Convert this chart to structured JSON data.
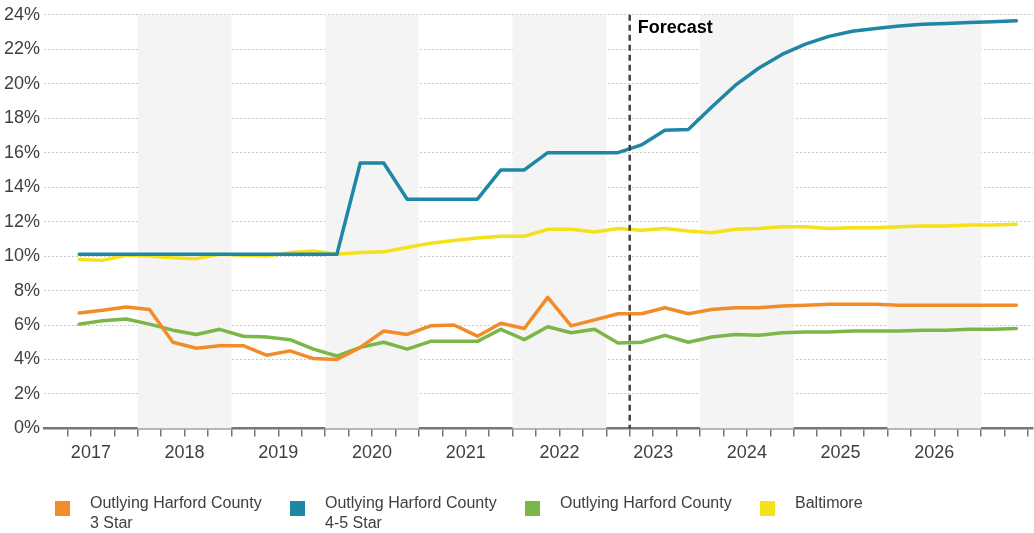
{
  "chart_data": {
    "type": "line",
    "x": [
      2017.375,
      2017.625,
      2017.875,
      2018.125,
      2018.375,
      2018.625,
      2018.875,
      2019.125,
      2019.375,
      2019.625,
      2019.875,
      2020.125,
      2020.375,
      2020.625,
      2020.875,
      2021.125,
      2021.375,
      2021.625,
      2021.875,
      2022.125,
      2022.375,
      2022.625,
      2022.875,
      2023.125,
      2023.375,
      2023.625,
      2023.875,
      2024.125,
      2024.375,
      2024.625,
      2024.875,
      2025.125,
      2025.375,
      2025.625,
      2025.875,
      2026.125,
      2026.375,
      2026.625,
      2026.875,
      2027.125,
      2027.375
    ],
    "series": [
      {
        "name": "Outlying Harford County 3 Star",
        "color": "#f28c28",
        "values": [
          6.7,
          6.85,
          7.05,
          6.9,
          5.0,
          4.65,
          4.8,
          4.8,
          4.25,
          4.5,
          4.05,
          4.0,
          4.7,
          5.65,
          5.45,
          5.95,
          6.0,
          5.35,
          6.1,
          5.8,
          7.6,
          5.95,
          6.3,
          6.65,
          6.65,
          7.0,
          6.65,
          6.9,
          7.0,
          7.0,
          7.1,
          7.15,
          7.2,
          7.2,
          7.2,
          7.15,
          7.15,
          7.15,
          7.15,
          7.15,
          7.15
        ]
      },
      {
        "name": "Outlying Harford County 4-5 Star",
        "color": "#1f86a6",
        "values": [
          10.1,
          10.1,
          10.1,
          10.1,
          10.1,
          10.1,
          10.1,
          10.1,
          10.1,
          10.1,
          10.1,
          10.1,
          15.4,
          15.4,
          13.3,
          13.3,
          13.3,
          13.3,
          15.0,
          15.0,
          16.0,
          16.0,
          16.0,
          16.0,
          16.45,
          17.3,
          17.35,
          18.65,
          19.9,
          20.9,
          21.7,
          22.3,
          22.75,
          23.05,
          23.2,
          23.35,
          23.45,
          23.5,
          23.55,
          23.6,
          23.65
        ]
      },
      {
        "name": "Outlying Harford County",
        "color": "#7ab648",
        "values": [
          6.05,
          6.25,
          6.35,
          6.05,
          5.7,
          5.45,
          5.75,
          5.35,
          5.3,
          5.15,
          4.6,
          4.2,
          4.7,
          5.0,
          4.6,
          5.05,
          5.05,
          5.05,
          5.75,
          5.15,
          5.9,
          5.55,
          5.75,
          4.95,
          5.0,
          5.4,
          5.0,
          5.3,
          5.45,
          5.4,
          5.55,
          5.6,
          5.6,
          5.65,
          5.65,
          5.65,
          5.7,
          5.7,
          5.75,
          5.75,
          5.8
        ]
      },
      {
        "name": "Baltimore",
        "color": "#f5e11a",
        "values": [
          9.8,
          9.75,
          10.05,
          10.0,
          9.9,
          9.85,
          10.1,
          10.05,
          10.0,
          10.2,
          10.3,
          10.1,
          10.2,
          10.25,
          10.5,
          10.75,
          10.9,
          11.05,
          11.15,
          11.15,
          11.55,
          11.55,
          11.4,
          11.6,
          11.5,
          11.6,
          11.45,
          11.35,
          11.55,
          11.6,
          11.7,
          11.7,
          11.6,
          11.65,
          11.65,
          11.7,
          11.75,
          11.75,
          11.8,
          11.8,
          11.85
        ]
      }
    ],
    "ylim": [
      0,
      24
    ],
    "yticks": [
      {
        "value": 0,
        "label": "0%"
      },
      {
        "value": 2,
        "label": "2%"
      },
      {
        "value": 4,
        "label": "4%"
      },
      {
        "value": 6,
        "label": "6%"
      },
      {
        "value": 8,
        "label": "8%"
      },
      {
        "value": 10,
        "label": "10%"
      },
      {
        "value": 12,
        "label": "12%"
      },
      {
        "value": 14,
        "label": "14%"
      },
      {
        "value": 16,
        "label": "16%"
      },
      {
        "value": 18,
        "label": "18%"
      },
      {
        "value": 20,
        "label": "20%"
      },
      {
        "value": 22,
        "label": "22%"
      },
      {
        "value": 24,
        "label": "24%"
      }
    ],
    "xlim": [
      2017,
      2027.55
    ],
    "xticks": [
      {
        "value": 2017.25,
        "label": null
      },
      {
        "value": 2017.5,
        "label": "2017"
      },
      {
        "value": 2017.75,
        "label": null
      },
      {
        "value": 2018,
        "label": null
      },
      {
        "value": 2018.25,
        "label": null
      },
      {
        "value": 2018.5,
        "label": "2018"
      },
      {
        "value": 2018.75,
        "label": null
      },
      {
        "value": 2019,
        "label": null
      },
      {
        "value": 2019.25,
        "label": null
      },
      {
        "value": 2019.5,
        "label": "2019"
      },
      {
        "value": 2019.75,
        "label": null
      },
      {
        "value": 2020,
        "label": null
      },
      {
        "value": 2020.25,
        "label": null
      },
      {
        "value": 2020.5,
        "label": "2020"
      },
      {
        "value": 2020.75,
        "label": null
      },
      {
        "value": 2021,
        "label": null
      },
      {
        "value": 2021.25,
        "label": null
      },
      {
        "value": 2021.5,
        "label": "2021"
      },
      {
        "value": 2021.75,
        "label": null
      },
      {
        "value": 2022,
        "label": null
      },
      {
        "value": 2022.25,
        "label": null
      },
      {
        "value": 2022.5,
        "label": "2022"
      },
      {
        "value": 2022.75,
        "label": null
      },
      {
        "value": 2023,
        "label": null
      },
      {
        "value": 2023.25,
        "label": null
      },
      {
        "value": 2023.5,
        "label": "2023"
      },
      {
        "value": 2023.75,
        "label": null
      },
      {
        "value": 2024,
        "label": null
      },
      {
        "value": 2024.25,
        "label": null
      },
      {
        "value": 2024.5,
        "label": "2024"
      },
      {
        "value": 2024.75,
        "label": null
      },
      {
        "value": 2025,
        "label": null
      },
      {
        "value": 2025.25,
        "label": null
      },
      {
        "value": 2025.5,
        "label": "2025"
      },
      {
        "value": 2025.75,
        "label": null
      },
      {
        "value": 2026,
        "label": null
      },
      {
        "value": 2026.25,
        "label": null
      },
      {
        "value": 2026.5,
        "label": "2026"
      },
      {
        "value": 2026.75,
        "label": null
      },
      {
        "value": 2027,
        "label": null
      },
      {
        "value": 2027.25,
        "label": null
      },
      {
        "value": 2027.5,
        "label": null
      }
    ],
    "grid": "y",
    "legend": "bottom",
    "marker": "none",
    "line_style": "solid",
    "ref_lines": [
      {
        "axis": "x",
        "value": 2023.25,
        "label": "Forecast",
        "color": "#444444",
        "line_style": "dashed"
      }
    ],
    "bands": [
      {
        "axis": "x",
        "from": 2018,
        "to": 2019,
        "color": "#f4f4f4"
      },
      {
        "axis": "x",
        "from": 2020,
        "to": 2021,
        "color": "#f4f4f4"
      },
      {
        "axis": "x",
        "from": 2022,
        "to": 2023,
        "color": "#f4f4f4"
      },
      {
        "axis": "x",
        "from": 2024,
        "to": 2025,
        "color": "#f4f4f4"
      },
      {
        "axis": "x",
        "from": 2026,
        "to": 2027,
        "color": "#f4f4f4"
      }
    ]
  }
}
